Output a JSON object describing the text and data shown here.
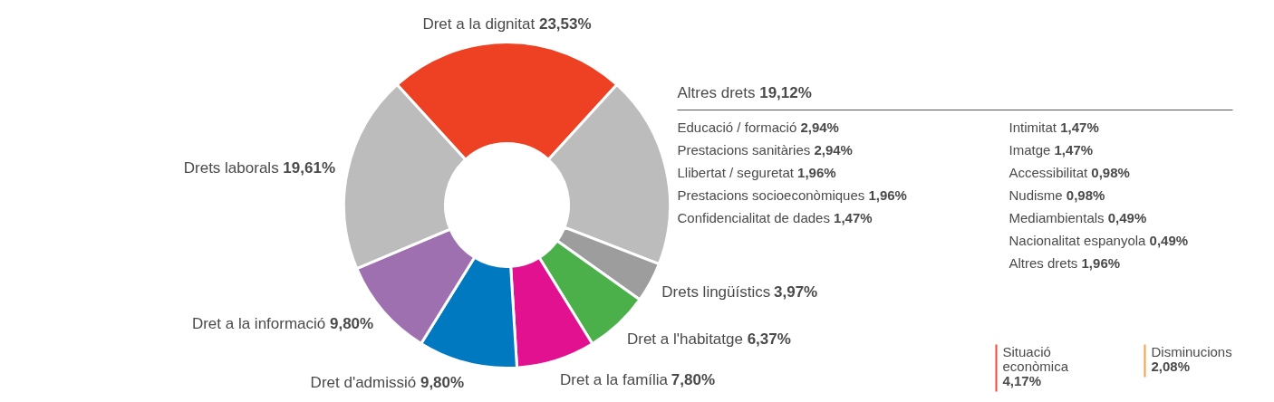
{
  "chart_data": [
    {
      "type": "donut",
      "categories": [
        "Dret a la dignitat",
        "Altres drets",
        "Drets lingüístics",
        "Dret a l'habitatge",
        "Dret a la família",
        "Dret d'admissió",
        "Dret a la informació",
        "Drets laborals"
      ],
      "values": [
        23.53,
        19.12,
        3.97,
        6.37,
        7.8,
        9.8,
        9.8,
        19.61
      ],
      "value_labels": [
        "23,53%",
        "19,12%",
        "3,97%",
        "6,37%",
        "7,80%",
        "9,80%",
        "9,80%",
        "19,61%"
      ],
      "colors": [
        "#ee4023",
        "#bcbcbc",
        "#9d9d9d",
        "#4bb04a",
        "#e2118f",
        "#0079c1",
        "#9e70b0",
        "#bcbcbc"
      ],
      "annotations": [
        "Educació / formació 2,94%",
        "Prestacions sanitàries 2,94%",
        "Llibertat / seguretat 1,96%",
        "Prestacions socioeconòmiques 1,96%",
        "Confidencialitat de dades 1,47%",
        "Intimitat 1,47%",
        "Imatge 1,47%",
        "Accessibilitat 0,98%",
        "Nudisme 0,98%",
        "Mediambientals 0,49%",
        "Nacionalitat espanyola 0,49%",
        "Altres drets 1,96%"
      ]
    },
    {
      "type": "other",
      "categories": [
        "Situació econòmica",
        "Disminucions"
      ],
      "values": [
        4.17,
        2.08
      ],
      "value_labels": [
        "4,17%",
        "2,08%"
      ],
      "colors": [
        "#e84c3d",
        "#f0a050"
      ]
    }
  ]
}
